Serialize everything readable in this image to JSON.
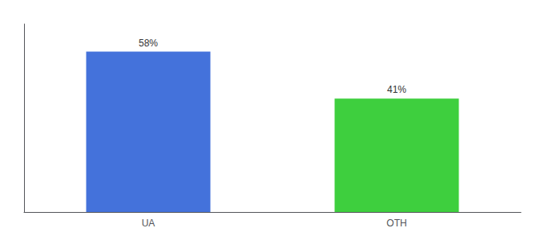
{
  "chart_data": {
    "type": "bar",
    "categories": [
      "UA",
      "OTH"
    ],
    "values": [
      58,
      41
    ],
    "value_labels": [
      "58%",
      "41%"
    ],
    "data_labels": true,
    "colors": [
      "#4472db",
      "#3ecf3e"
    ],
    "ylim": [
      0,
      68
    ],
    "tick_labels": "x",
    "grid": false
  }
}
